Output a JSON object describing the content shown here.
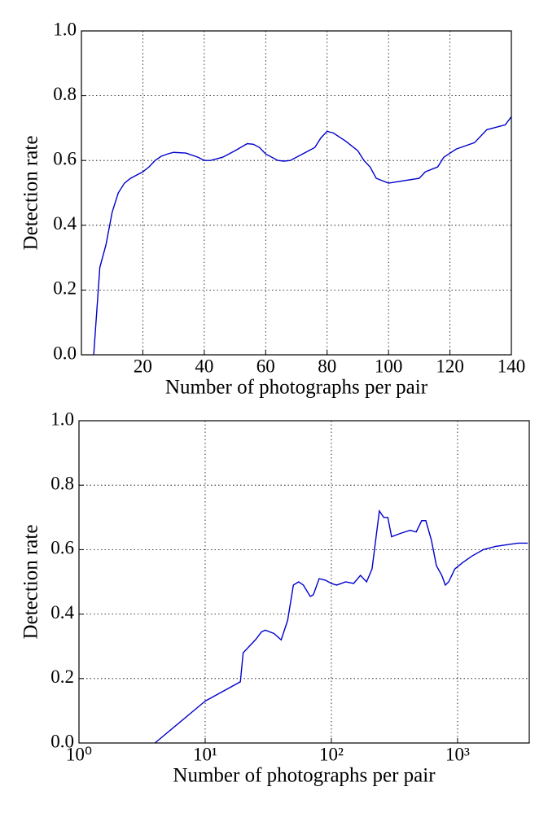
{
  "chart_data": [
    {
      "type": "line",
      "x_label": "Number of photographs per pair",
      "y_label": "Detection rate",
      "xlim": [
        0,
        140
      ],
      "xticks": [
        20,
        40,
        60,
        80,
        100,
        120,
        140
      ],
      "ylim": [
        0,
        1
      ],
      "yticks": [
        {
          "value": 0,
          "label": "0.0"
        },
        {
          "value": 0.2,
          "label": "0.2"
        },
        {
          "value": 0.4,
          "label": "0.4"
        },
        {
          "value": 0.6,
          "label": "0.6"
        },
        {
          "value": 0.8,
          "label": "0.8"
        },
        {
          "value": 1,
          "label": "1.0"
        }
      ],
      "grid": true,
      "xscale": "linear",
      "x": [
        4,
        6,
        8,
        10,
        12,
        14,
        16,
        18,
        20,
        22,
        24,
        26,
        28,
        30,
        34,
        38,
        40,
        42,
        46,
        50,
        54,
        56,
        58,
        60,
        64,
        66,
        68,
        72,
        76,
        78,
        80,
        82,
        86,
        90,
        92,
        94,
        96,
        100,
        110,
        112,
        116,
        118,
        122,
        128,
        132,
        138,
        140
      ],
      "series": [
        {
          "color": "#0000cc",
          "values": [
            0,
            0.27,
            0.34,
            0.44,
            0.5,
            0.53,
            0.545,
            0.555,
            0.565,
            0.58,
            0.6,
            0.613,
            0.62,
            0.625,
            0.623,
            0.61,
            0.6,
            0.6,
            0.61,
            0.63,
            0.652,
            0.65,
            0.64,
            0.62,
            0.6,
            0.598,
            0.6,
            0.62,
            0.64,
            0.67,
            0.69,
            0.685,
            0.66,
            0.63,
            0.6,
            0.58,
            0.545,
            0.53,
            0.545,
            0.565,
            0.58,
            0.61,
            0.635,
            0.655,
            0.695,
            0.71,
            0.735
          ]
        }
      ]
    },
    {
      "type": "line",
      "x_label": "Number of photographs per pair",
      "y_label": "Detection rate",
      "xlim": [
        1,
        3700
      ],
      "xticks": [
        {
          "value": 1,
          "label": "10⁰"
        },
        {
          "value": 10,
          "label": "10¹"
        },
        {
          "value": 100,
          "label": "10²"
        },
        {
          "value": 1000,
          "label": "10³"
        }
      ],
      "ylim": [
        0,
        1
      ],
      "yticks": [
        {
          "value": 0,
          "label": "0.0"
        },
        {
          "value": 0.2,
          "label": "0.2"
        },
        {
          "value": 0.4,
          "label": "0.4"
        },
        {
          "value": 0.6,
          "label": "0.6"
        },
        {
          "value": 0.8,
          "label": "0.8"
        },
        {
          "value": 1,
          "label": "1.0"
        }
      ],
      "grid": true,
      "xscale": "log",
      "x": [
        4,
        10,
        19,
        20,
        25,
        28,
        30,
        35,
        40,
        45,
        50,
        55,
        60,
        68,
        72,
        80,
        90,
        100,
        110,
        130,
        150,
        170,
        190,
        210,
        240,
        260,
        280,
        300,
        350,
        420,
        470,
        520,
        560,
        620,
        680,
        750,
        800,
        850,
        900,
        950,
        1100,
        1300,
        1600,
        2000,
        3000,
        3600
      ],
      "series": [
        {
          "color": "#0000cc",
          "values": [
            0,
            0.13,
            0.19,
            0.28,
            0.32,
            0.345,
            0.35,
            0.34,
            0.32,
            0.38,
            0.49,
            0.5,
            0.49,
            0.455,
            0.46,
            0.51,
            0.505,
            0.495,
            0.49,
            0.5,
            0.495,
            0.52,
            0.5,
            0.54,
            0.72,
            0.7,
            0.7,
            0.64,
            0.65,
            0.66,
            0.655,
            0.69,
            0.69,
            0.63,
            0.55,
            0.52,
            0.49,
            0.5,
            0.52,
            0.54,
            0.56,
            0.58,
            0.6,
            0.61,
            0.62,
            0.62
          ]
        }
      ]
    }
  ]
}
